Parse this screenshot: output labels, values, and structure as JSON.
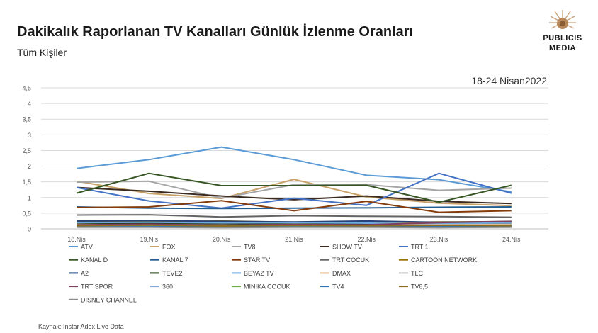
{
  "header": {
    "title": "Dakikalık Raporlanan TV Kanalları Günlük İzlenme Oranları",
    "subtitle": "Tüm Kişiler",
    "date_range": "18-24 Nisan2022",
    "logo_line1": "PUBLICIS",
    "logo_line2": "MEDIA"
  },
  "footer": {
    "source": "Kaynak: Instar  Adex Live Data"
  },
  "chart_data": {
    "type": "line",
    "categories": [
      "18.Nis",
      "19.Nis",
      "20.Nis",
      "21.Nis",
      "22.Nis",
      "23.Nis",
      "24.Nis"
    ],
    "yticks": [
      "0",
      "0,5",
      "1",
      "1,5",
      "2",
      "2,5",
      "3",
      "3,5",
      "4",
      "4,5"
    ],
    "ylim": [
      0,
      4.5
    ],
    "grid": true,
    "legend_position": "bottom",
    "series": [
      {
        "name": "ATV",
        "color": "#5B9BD5",
        "values": [
          1.93,
          2.21,
          2.61,
          2.21,
          1.71,
          1.57,
          1.18
        ]
      },
      {
        "name": "FOX",
        "color": "#C9A26A",
        "values": [
          1.52,
          1.13,
          0.97,
          1.58,
          1.02,
          0.82,
          0.74
        ]
      },
      {
        "name": "TV8",
        "color": "#A5A5A5",
        "values": [
          1.49,
          1.52,
          0.98,
          1.41,
          1.41,
          1.23,
          1.3
        ]
      },
      {
        "name": "SHOW TV",
        "color": "#3B2A20",
        "values": [
          1.32,
          1.2,
          1.05,
          0.93,
          1.05,
          0.88,
          0.81
        ]
      },
      {
        "name": "TRT 1",
        "color": "#4472C4",
        "values": [
          1.32,
          0.89,
          0.66,
          0.98,
          0.75,
          1.77,
          1.14
        ]
      },
      {
        "name": "KANAL D",
        "color": "#375623",
        "values": [
          1.14,
          1.77,
          1.38,
          1.38,
          1.39,
          0.85,
          1.39
        ]
      },
      {
        "name": "KANAL 7",
        "color": "#255E91",
        "values": [
          0.7,
          0.66,
          0.65,
          0.66,
          0.67,
          0.69,
          0.7
        ]
      },
      {
        "name": "STAR TV",
        "color": "#843C0C",
        "values": [
          0.68,
          0.7,
          0.9,
          0.58,
          0.88,
          0.53,
          0.58
        ]
      },
      {
        "name": "TRT COCUK",
        "color": "#636363",
        "values": [
          0.44,
          0.45,
          0.38,
          0.42,
          0.4,
          0.39,
          0.37
        ]
      },
      {
        "name": "CARTOON NETWORK",
        "color": "#997300",
        "values": [
          0.24,
          0.22,
          0.25,
          0.21,
          0.2,
          0.22,
          0.23
        ]
      },
      {
        "name": "A2",
        "color": "#264478",
        "values": [
          0.25,
          0.26,
          0.24,
          0.22,
          0.25,
          0.21,
          0.23
        ]
      },
      {
        "name": "TEVE2",
        "color": "#1E3A12",
        "values": [
          0.16,
          0.18,
          0.17,
          0.15,
          0.16,
          0.15,
          0.17
        ]
      },
      {
        "name": "BEYAZ TV",
        "color": "#6FA8DC",
        "values": [
          0.2,
          0.21,
          0.19,
          0.2,
          0.18,
          0.17,
          0.19
        ]
      },
      {
        "name": "DMAX",
        "color": "#E6B98C",
        "values": [
          0.14,
          0.13,
          0.12,
          0.13,
          0.12,
          0.13,
          0.14
        ]
      },
      {
        "name": "TLC",
        "color": "#BFBFBF",
        "values": [
          0.12,
          0.12,
          0.11,
          0.12,
          0.11,
          0.12,
          0.12
        ]
      },
      {
        "name": "TRT SPOR",
        "color": "#7F3F5F",
        "values": [
          0.13,
          0.15,
          0.12,
          0.14,
          0.13,
          0.2,
          0.24
        ]
      },
      {
        "name": "360",
        "color": "#7FA7D9",
        "values": [
          0.08,
          0.09,
          0.08,
          0.07,
          0.08,
          0.07,
          0.08
        ]
      },
      {
        "name": "MINIKA COCUK",
        "color": "#70AD47",
        "values": [
          0.1,
          0.11,
          0.1,
          0.1,
          0.09,
          0.1,
          0.1
        ]
      },
      {
        "name": "TV4",
        "color": "#2E75B6",
        "values": [
          0.06,
          0.07,
          0.06,
          0.06,
          0.06,
          0.07,
          0.06
        ]
      },
      {
        "name": "TV8,5",
        "color": "#8C6D1F",
        "values": [
          0.1,
          0.12,
          0.09,
          0.11,
          0.1,
          0.11,
          0.1
        ]
      },
      {
        "name": "DISNEY CHANNEL",
        "color": "#8E8E8E",
        "values": [
          0.05,
          0.05,
          0.04,
          0.05,
          0.05,
          0.04,
          0.05
        ]
      }
    ]
  }
}
